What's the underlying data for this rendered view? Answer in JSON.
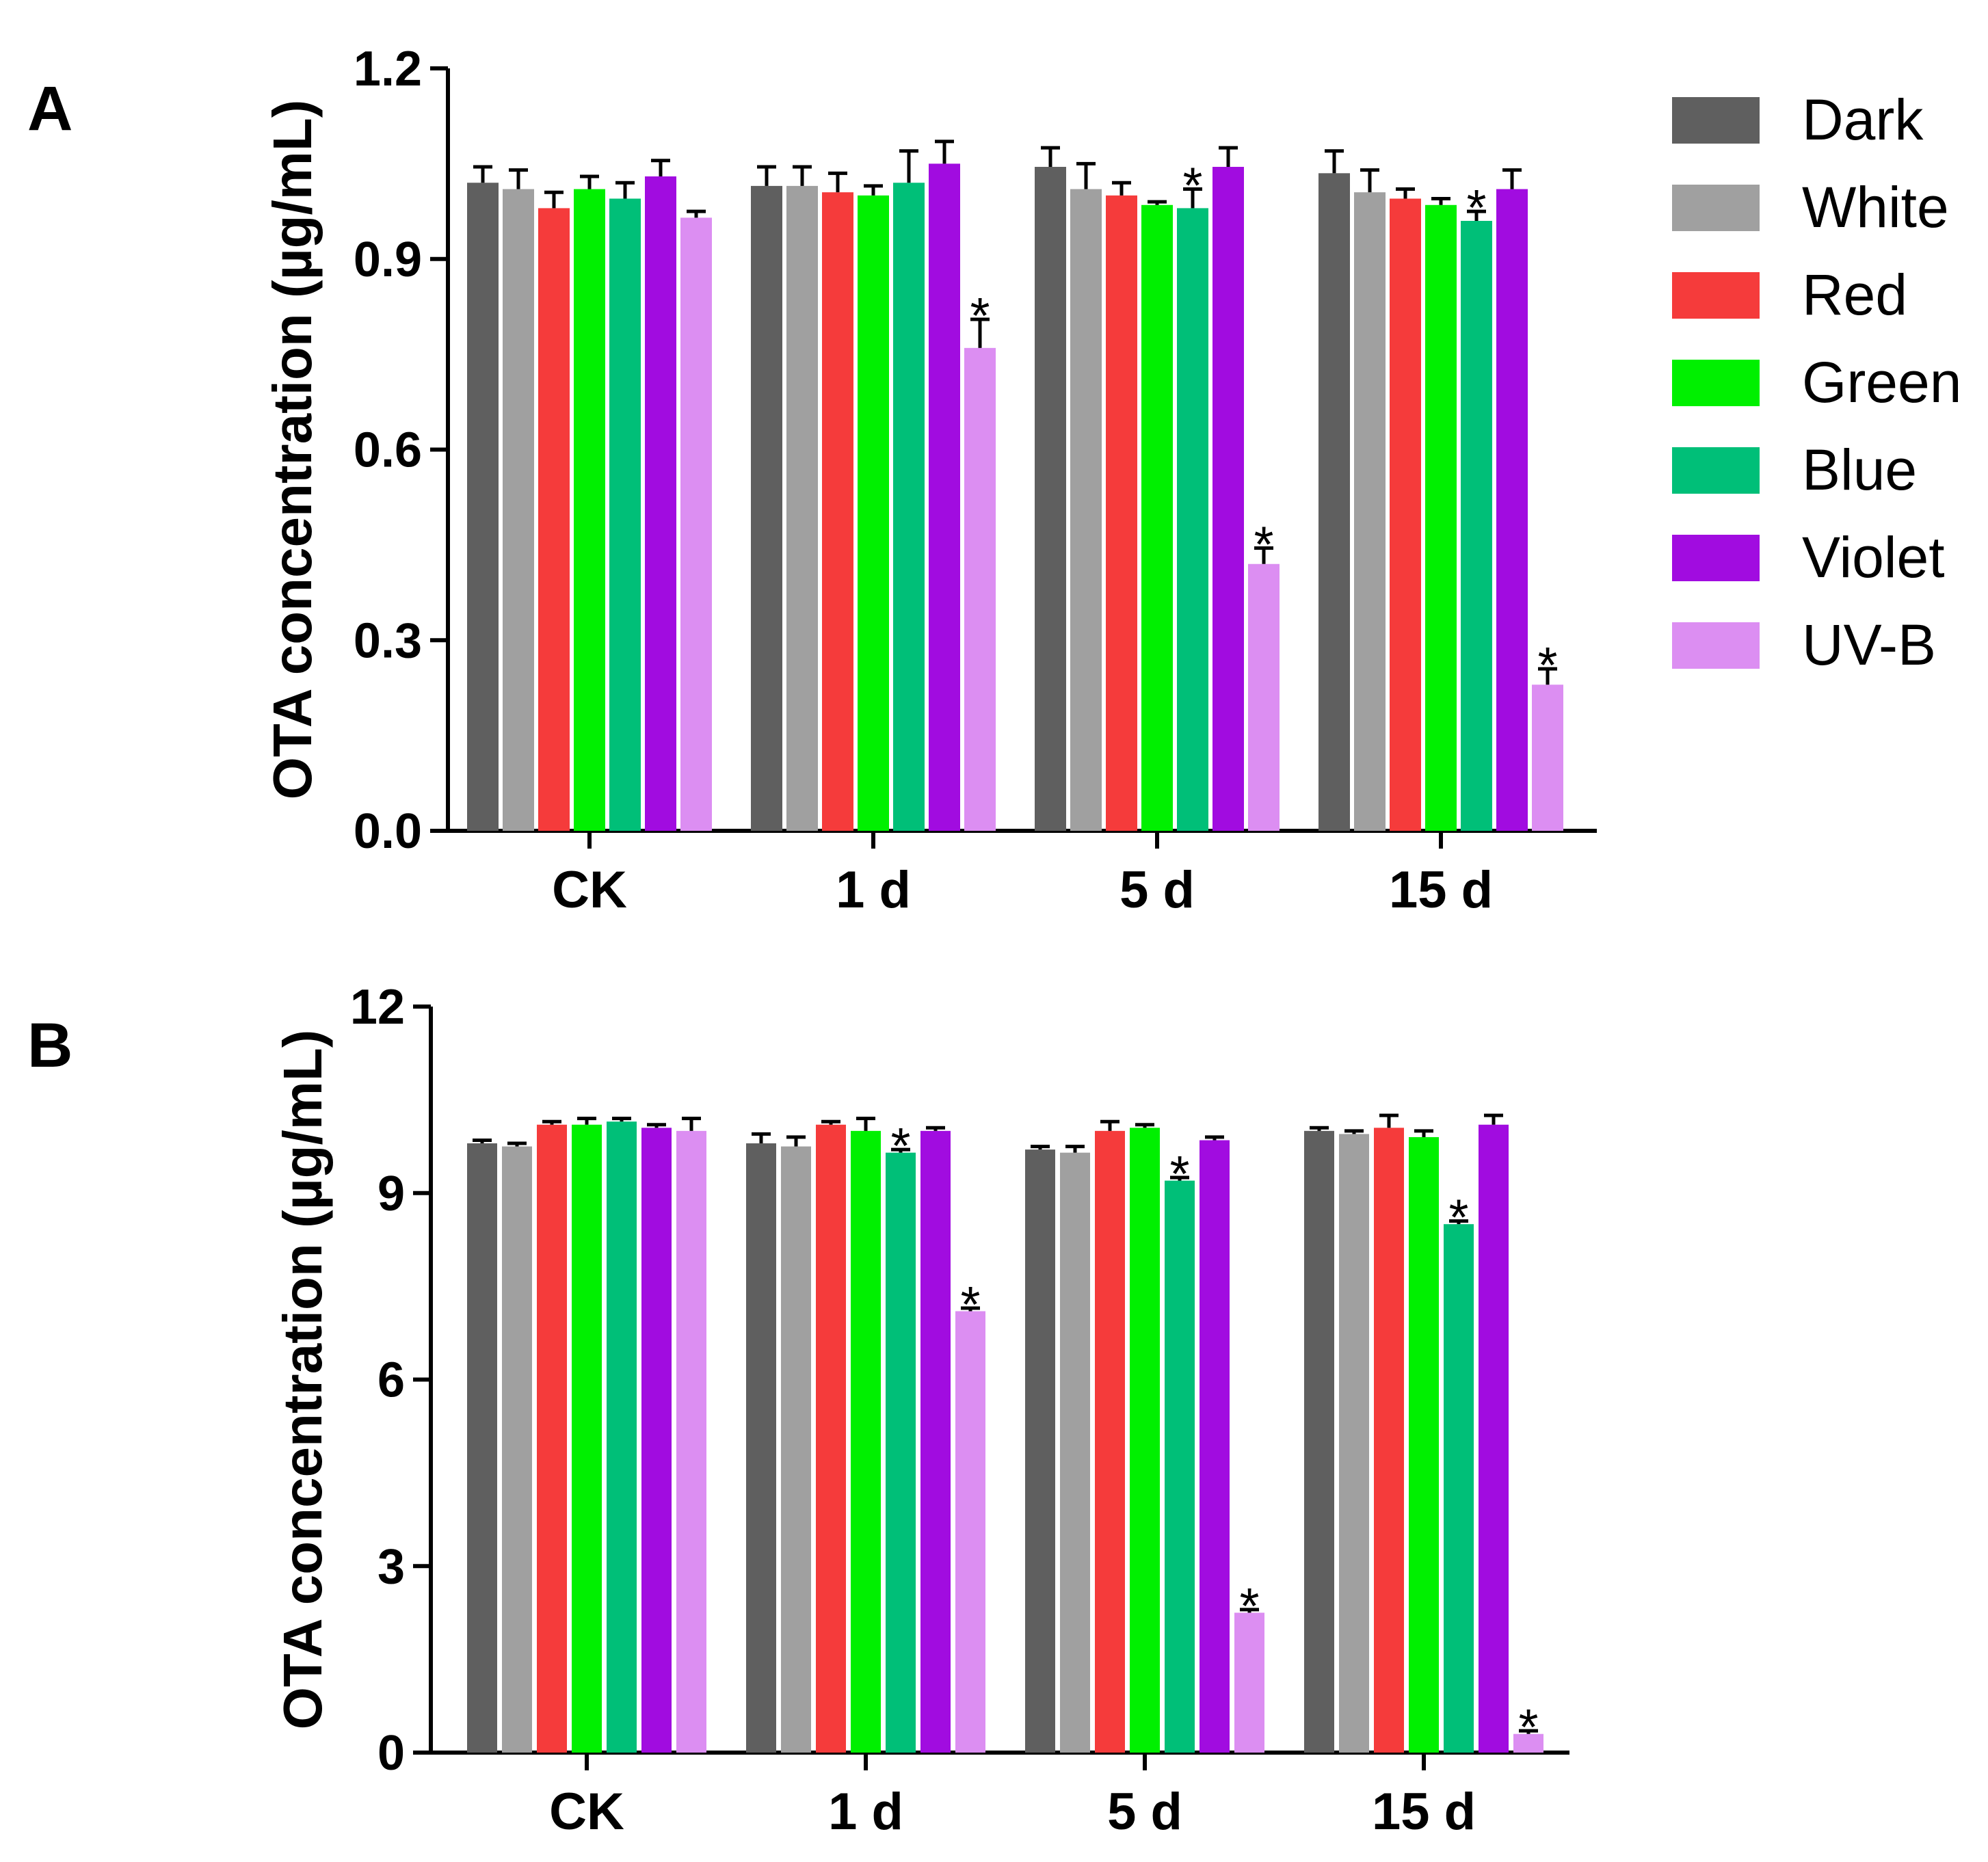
{
  "chart_data": [
    {
      "panel": "A",
      "type": "bar",
      "ylabel": "OTA concentration (µg/mL)",
      "ylim": [
        0,
        1.2
      ],
      "yticks": [
        "0.0",
        "0.3",
        "0.6",
        "0.9",
        "1.2"
      ],
      "categories": [
        "CK",
        "1 d",
        "5 d",
        "15 d"
      ],
      "series": [
        {
          "name": "Dark",
          "values": [
            1.02,
            1.015,
            1.045,
            1.035
          ],
          "errors": [
            0.025,
            0.03,
            0.03,
            0.035
          ],
          "sig": [
            false,
            false,
            false,
            false
          ]
        },
        {
          "name": "White",
          "values": [
            1.01,
            1.015,
            1.01,
            1.005
          ],
          "errors": [
            0.03,
            0.03,
            0.04,
            0.035
          ],
          "sig": [
            false,
            false,
            false,
            false
          ]
        },
        {
          "name": "Red",
          "values": [
            0.98,
            1.005,
            1.0,
            0.995
          ],
          "errors": [
            0.025,
            0.03,
            0.02,
            0.015
          ],
          "sig": [
            false,
            false,
            false,
            false
          ]
        },
        {
          "name": "Green",
          "values": [
            1.01,
            1.0,
            0.985,
            0.985
          ],
          "errors": [
            0.02,
            0.015,
            0.005,
            0.01
          ],
          "sig": [
            false,
            false,
            false,
            false
          ]
        },
        {
          "name": "Blue",
          "values": [
            0.995,
            1.02,
            0.98,
            0.96
          ],
          "errors": [
            0.025,
            0.05,
            0.03,
            0.015
          ],
          "sig": [
            false,
            false,
            true,
            true
          ]
        },
        {
          "name": "Violet",
          "values": [
            1.03,
            1.05,
            1.045,
            1.01
          ],
          "errors": [
            0.025,
            0.035,
            0.03,
            0.03
          ],
          "sig": [
            false,
            false,
            false,
            false
          ]
        },
        {
          "name": "UV-B",
          "values": [
            0.965,
            0.76,
            0.42,
            0.23
          ],
          "errors": [
            0.01,
            0.045,
            0.025,
            0.025
          ],
          "sig": [
            false,
            true,
            true,
            true
          ]
        }
      ]
    },
    {
      "panel": "B",
      "type": "bar",
      "ylabel": "OTA concentration (µg/mL)",
      "ylim": [
        0,
        12
      ],
      "yticks": [
        "0",
        "3",
        "6",
        "9",
        "12"
      ],
      "categories": [
        "CK",
        "1 d",
        "5 d",
        "15 d"
      ],
      "series": [
        {
          "name": "Dark",
          "values": [
            9.8,
            9.8,
            9.7,
            10.0
          ],
          "errors": [
            0.05,
            0.15,
            0.05,
            0.05
          ],
          "sig": [
            false,
            false,
            false,
            false
          ]
        },
        {
          "name": "White",
          "values": [
            9.75,
            9.75,
            9.65,
            9.95
          ],
          "errors": [
            0.05,
            0.15,
            0.1,
            0.05
          ],
          "sig": [
            false,
            false,
            false,
            false
          ]
        },
        {
          "name": "Red",
          "values": [
            10.1,
            10.1,
            10.0,
            10.05
          ],
          "errors": [
            0.05,
            0.05,
            0.15,
            0.2
          ],
          "sig": [
            false,
            false,
            false,
            false
          ]
        },
        {
          "name": "Green",
          "values": [
            10.1,
            10.0,
            10.05,
            9.9
          ],
          "errors": [
            0.1,
            0.2,
            0.05,
            0.1
          ],
          "sig": [
            false,
            false,
            false,
            false
          ]
        },
        {
          "name": "Blue",
          "values": [
            10.15,
            9.65,
            9.2,
            8.5
          ],
          "errors": [
            0.05,
            0.05,
            0.05,
            0.05
          ],
          "sig": [
            false,
            true,
            true,
            true
          ]
        },
        {
          "name": "Violet",
          "values": [
            10.05,
            10.0,
            9.85,
            10.1
          ],
          "errors": [
            0.05,
            0.05,
            0.05,
            0.15
          ],
          "sig": [
            false,
            false,
            false,
            false
          ]
        },
        {
          "name": "UV-B",
          "values": [
            10.0,
            7.1,
            2.25,
            0.3
          ],
          "errors": [
            0.2,
            0.05,
            0.05,
            0.05
          ],
          "sig": [
            false,
            true,
            true,
            true
          ]
        }
      ]
    }
  ],
  "significance_marker": "*",
  "colors": {
    "Dark": "#5f5f5f",
    "White": "#a0a0a0",
    "Red": "#f53b3b",
    "Green": "#00f000",
    "Blue": "#00bf78",
    "Violet": "#a10ce0",
    "UV-B": "#dc8ef2"
  }
}
